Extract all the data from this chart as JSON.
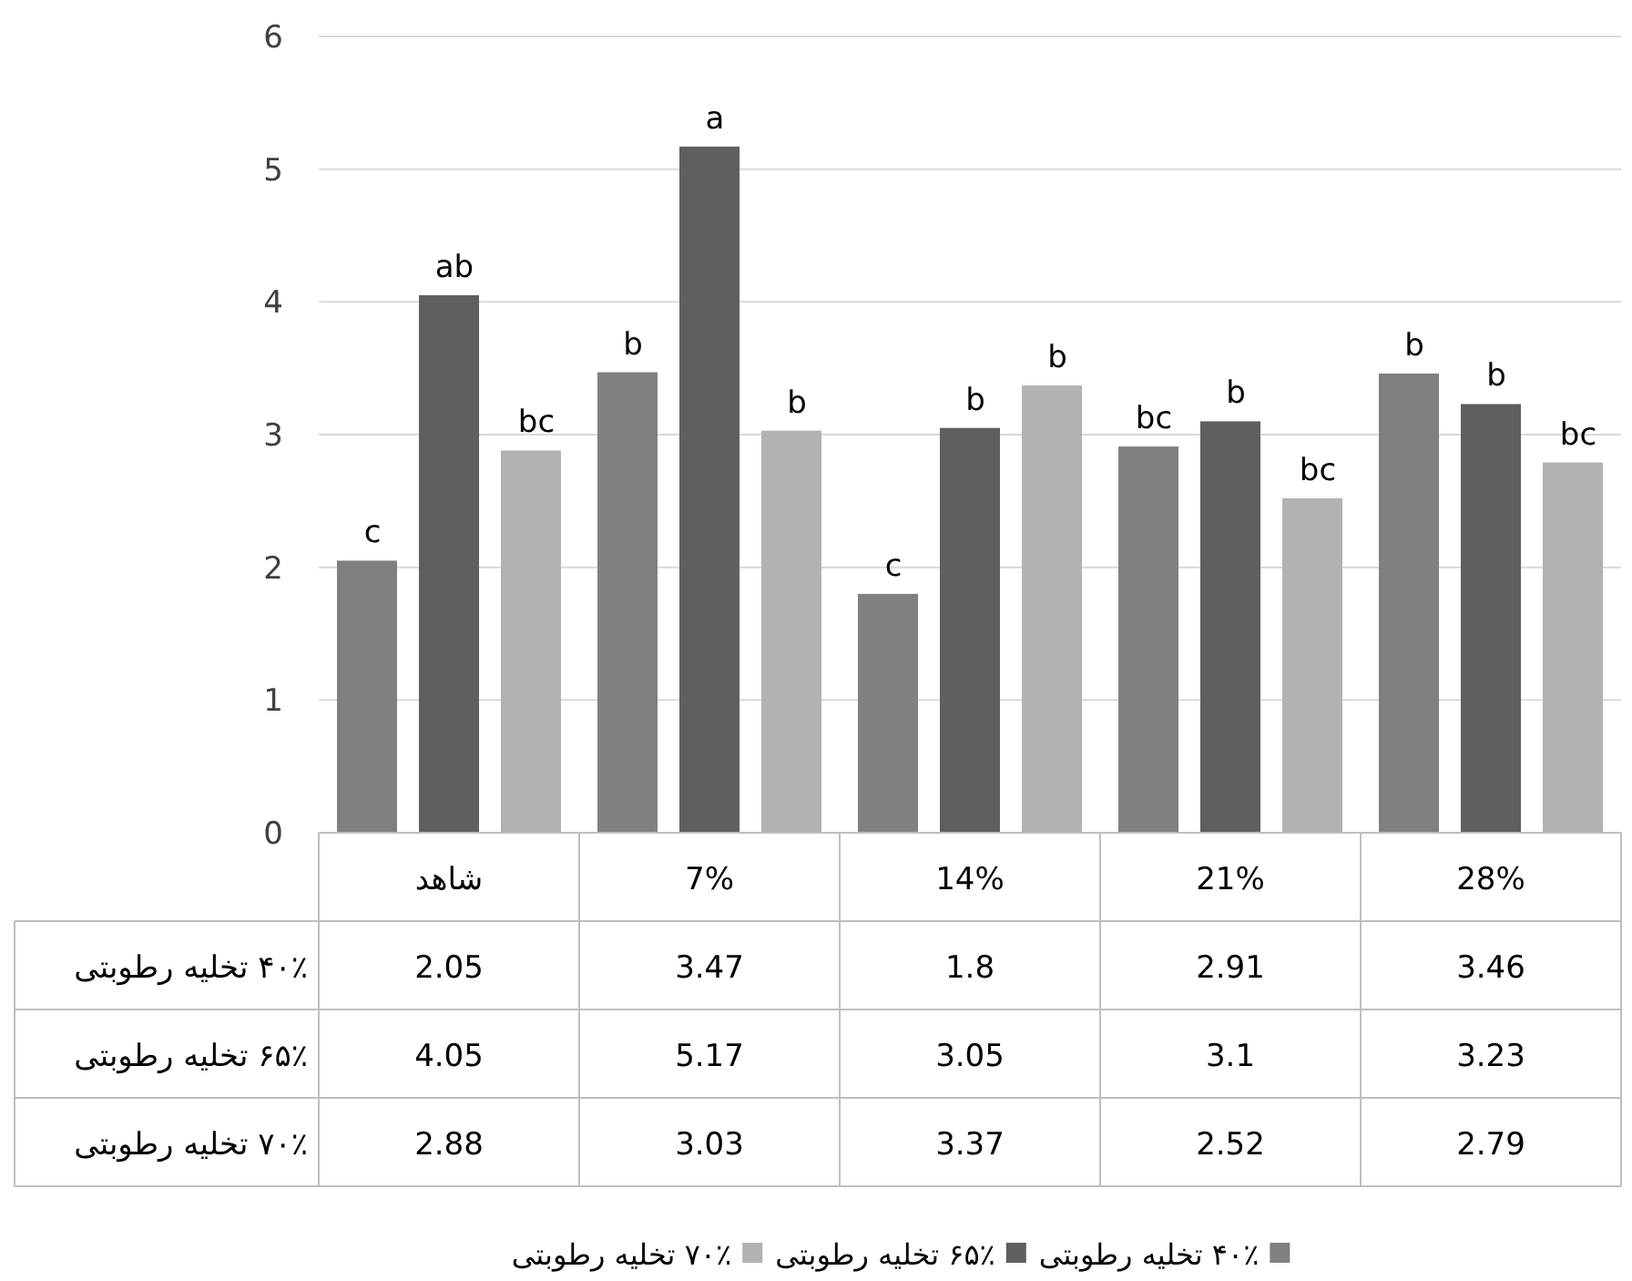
{
  "chart_data": {
    "type": "bar",
    "categories": [
      "شاهد",
      "7%",
      "14%",
      "21%",
      "28%"
    ],
    "series": [
      {
        "name": "۴۰٪ تخلیه رطوبتی",
        "color": "#808080",
        "values": [
          2.05,
          3.47,
          1.8,
          2.91,
          3.46
        ]
      },
      {
        "name": "۶۵٪ تخلیه رطوبتی",
        "color": "#5f5f5f",
        "values": [
          4.05,
          5.17,
          3.05,
          3.1,
          3.23
        ]
      },
      {
        "name": "۷۰٪ تخلیه رطوبتی",
        "color": "#b2b2b2",
        "values": [
          2.88,
          3.03,
          3.37,
          2.52,
          2.79
        ]
      }
    ],
    "ylim": [
      0,
      6
    ],
    "yticks": [
      0,
      1,
      2,
      3,
      4,
      5,
      6
    ],
    "grid": "y",
    "legend": "bottom",
    "data_labels": true,
    "annotations": [
      "c",
      "ab",
      "bc",
      "b",
      "a",
      "b",
      "c",
      "b",
      "b",
      "bc",
      "b",
      "bc",
      "b",
      "b",
      "bc"
    ]
  }
}
